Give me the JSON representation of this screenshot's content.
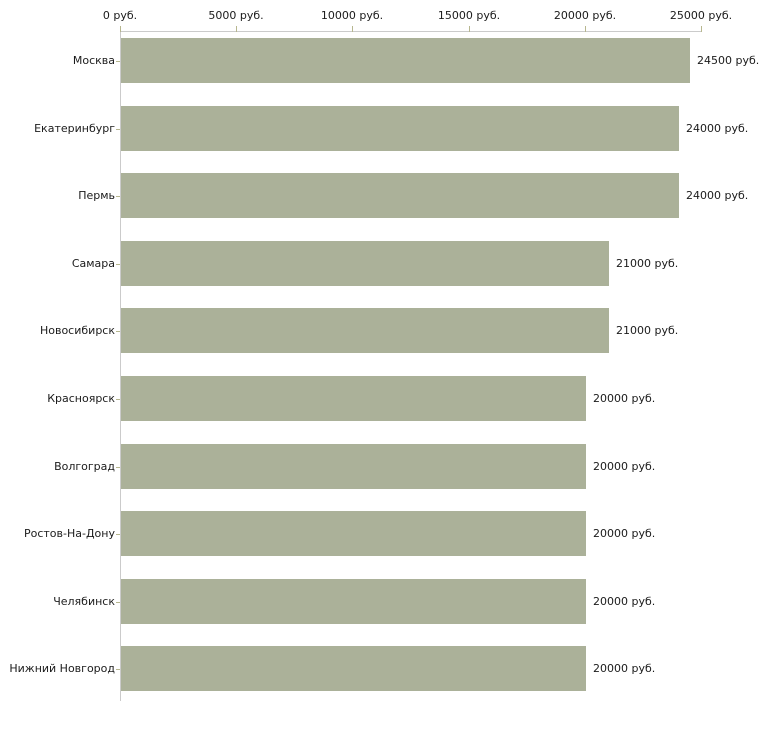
{
  "chart_data": {
    "type": "bar",
    "orientation": "horizontal",
    "title": "",
    "xlabel": "",
    "ylabel": "",
    "categories": [
      "Москва",
      "Екатеринбург",
      "Пермь",
      "Самара",
      "Новосибирск",
      "Красноярск",
      "Волгоград",
      "Ростов-На-Дону",
      "Челябинск",
      "Нижний Новгород"
    ],
    "values": [
      24500,
      24000,
      24000,
      21000,
      21000,
      20000,
      20000,
      20000,
      20000,
      20000
    ],
    "value_labels": [
      "24500 руб.",
      "24000 руб.",
      "24000 руб.",
      "21000 руб.",
      "21000 руб.",
      "20000 руб.",
      "20000 руб.",
      "20000 руб.",
      "20000 руб.",
      "20000 руб."
    ],
    "x_ticks": [
      0,
      5000,
      10000,
      15000,
      20000,
      25000
    ],
    "x_tick_labels": [
      "0 руб.",
      "5000 руб.",
      "10000 руб.",
      "15000 руб.",
      "20000 руб.",
      "25000 руб."
    ],
    "xlim": [
      0,
      25000
    ],
    "axis_position": "top",
    "grid": false,
    "legend": false,
    "colors": {
      "bar_fill": "#abb199",
      "axis_line": "#cbcbcb",
      "tick_mark": "#b7b78f",
      "text": "#1b1b1b",
      "background": "#ffffff"
    }
  }
}
